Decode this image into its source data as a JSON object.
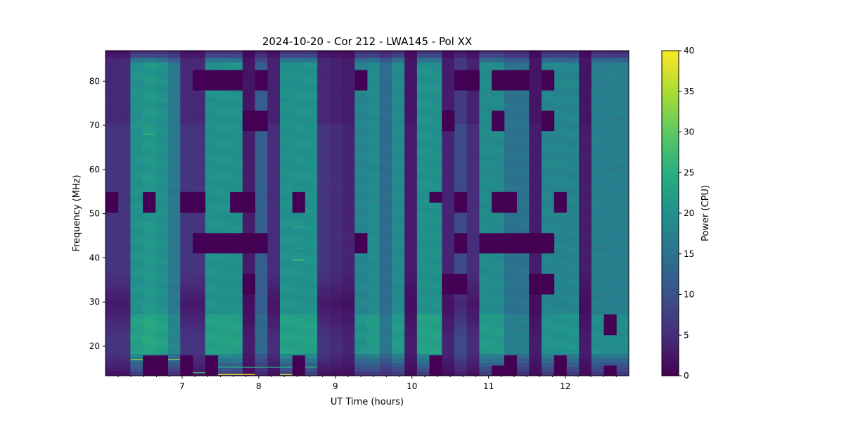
{
  "chart_data": {
    "type": "heatmap",
    "title": "2024-10-20 - Cor 212 - LWA145 - Pol XX",
    "xlabel": "UT Time (hours)",
    "ylabel": "Frequency (MHz)",
    "xlim": [
      6.0,
      12.83
    ],
    "ylim": [
      13.3,
      86.9
    ],
    "x_ticks": [
      7,
      8,
      9,
      10,
      11,
      12
    ],
    "y_ticks": [
      20,
      30,
      40,
      50,
      60,
      70,
      80
    ],
    "colorbar": {
      "label": "Power (CPU)",
      "range": [
        0,
        40
      ],
      "ticks": [
        0,
        5,
        10,
        15,
        20,
        25,
        30,
        35,
        40
      ],
      "colormap": "viridis"
    },
    "n_time_bins": 42,
    "column_base_power": [
      6,
      6,
      20,
      21,
      20,
      16,
      6,
      6,
      20,
      20,
      20,
      3,
      12,
      5,
      20,
      20,
      20,
      6,
      5,
      4,
      18,
      19,
      14,
      19,
      3,
      20,
      20,
      4,
      9,
      5,
      19,
      19,
      15,
      15,
      3,
      18,
      18,
      18,
      3,
      17,
      17,
      17
    ],
    "flagged_cells": [
      [
        7,
        77.9,
        82.5
      ],
      [
        8,
        77.9,
        82.5
      ],
      [
        9,
        77.9,
        82.5
      ],
      [
        10,
        77.9,
        82.5
      ],
      [
        12,
        77.9,
        82.5
      ],
      [
        20,
        77.9,
        82.5
      ],
      [
        28,
        77.9,
        82.5
      ],
      [
        29,
        77.9,
        82.5
      ],
      [
        31,
        77.9,
        82.5
      ],
      [
        32,
        77.9,
        82.5
      ],
      [
        33,
        77.9,
        82.5
      ],
      [
        35,
        77.9,
        82.5
      ],
      [
        11,
        68.7,
        73.3
      ],
      [
        12,
        68.7,
        73.3
      ],
      [
        27,
        68.7,
        73.3
      ],
      [
        31,
        68.7,
        73.3
      ],
      [
        35,
        68.7,
        73.3
      ],
      [
        0,
        50.2,
        54.9
      ],
      [
        3,
        50.2,
        54.9
      ],
      [
        6,
        50.2,
        54.9
      ],
      [
        7,
        50.2,
        54.9
      ],
      [
        10,
        50.2,
        54.9
      ],
      [
        11,
        50.2,
        54.9
      ],
      [
        15,
        50.2,
        54.9
      ],
      [
        26,
        52.5,
        54.9
      ],
      [
        28,
        50.2,
        54.9
      ],
      [
        31,
        50.2,
        54.9
      ],
      [
        32,
        50.2,
        54.9
      ],
      [
        36,
        50.2,
        54.9
      ],
      [
        7,
        41.0,
        45.6
      ],
      [
        8,
        41.0,
        45.6
      ],
      [
        9,
        41.0,
        45.6
      ],
      [
        10,
        41.0,
        45.6
      ],
      [
        11,
        41.0,
        45.6
      ],
      [
        12,
        41.0,
        45.6
      ],
      [
        20,
        41.0,
        45.6
      ],
      [
        28,
        41.0,
        45.6
      ],
      [
        30,
        41.0,
        45.6
      ],
      [
        31,
        41.0,
        45.6
      ],
      [
        32,
        41.0,
        45.6
      ],
      [
        33,
        41.0,
        45.6
      ],
      [
        34,
        41.0,
        45.6
      ],
      [
        35,
        41.0,
        45.6
      ],
      [
        11,
        31.7,
        36.4
      ],
      [
        27,
        31.7,
        36.4
      ],
      [
        28,
        31.7,
        36.4
      ],
      [
        34,
        31.7,
        36.4
      ],
      [
        35,
        31.7,
        36.4
      ],
      [
        40,
        22.5,
        27.2
      ],
      [
        3,
        13.3,
        17.9
      ],
      [
        4,
        13.3,
        17.9
      ],
      [
        6,
        13.3,
        17.9
      ],
      [
        8,
        13.3,
        17.9
      ],
      [
        15,
        13.3,
        17.9
      ],
      [
        26,
        13.3,
        17.9
      ],
      [
        31,
        13.3,
        15.6
      ],
      [
        32,
        13.3,
        17.9
      ],
      [
        36,
        13.3,
        17.9
      ],
      [
        40,
        13.3,
        15.6
      ]
    ],
    "rfi_lines": [
      [
        3,
        3,
        68.0,
        28
      ],
      [
        15,
        15,
        47.0,
        26
      ],
      [
        15,
        15,
        42.2,
        24
      ],
      [
        15,
        15,
        39.5,
        30
      ],
      [
        2,
        2,
        17.0,
        34
      ],
      [
        5,
        5,
        17.0,
        34
      ],
      [
        8,
        11,
        13.6,
        40
      ],
      [
        14,
        14,
        13.6,
        38
      ],
      [
        7,
        7,
        14.0,
        28
      ],
      [
        9,
        16,
        15.2,
        24
      ]
    ]
  }
}
